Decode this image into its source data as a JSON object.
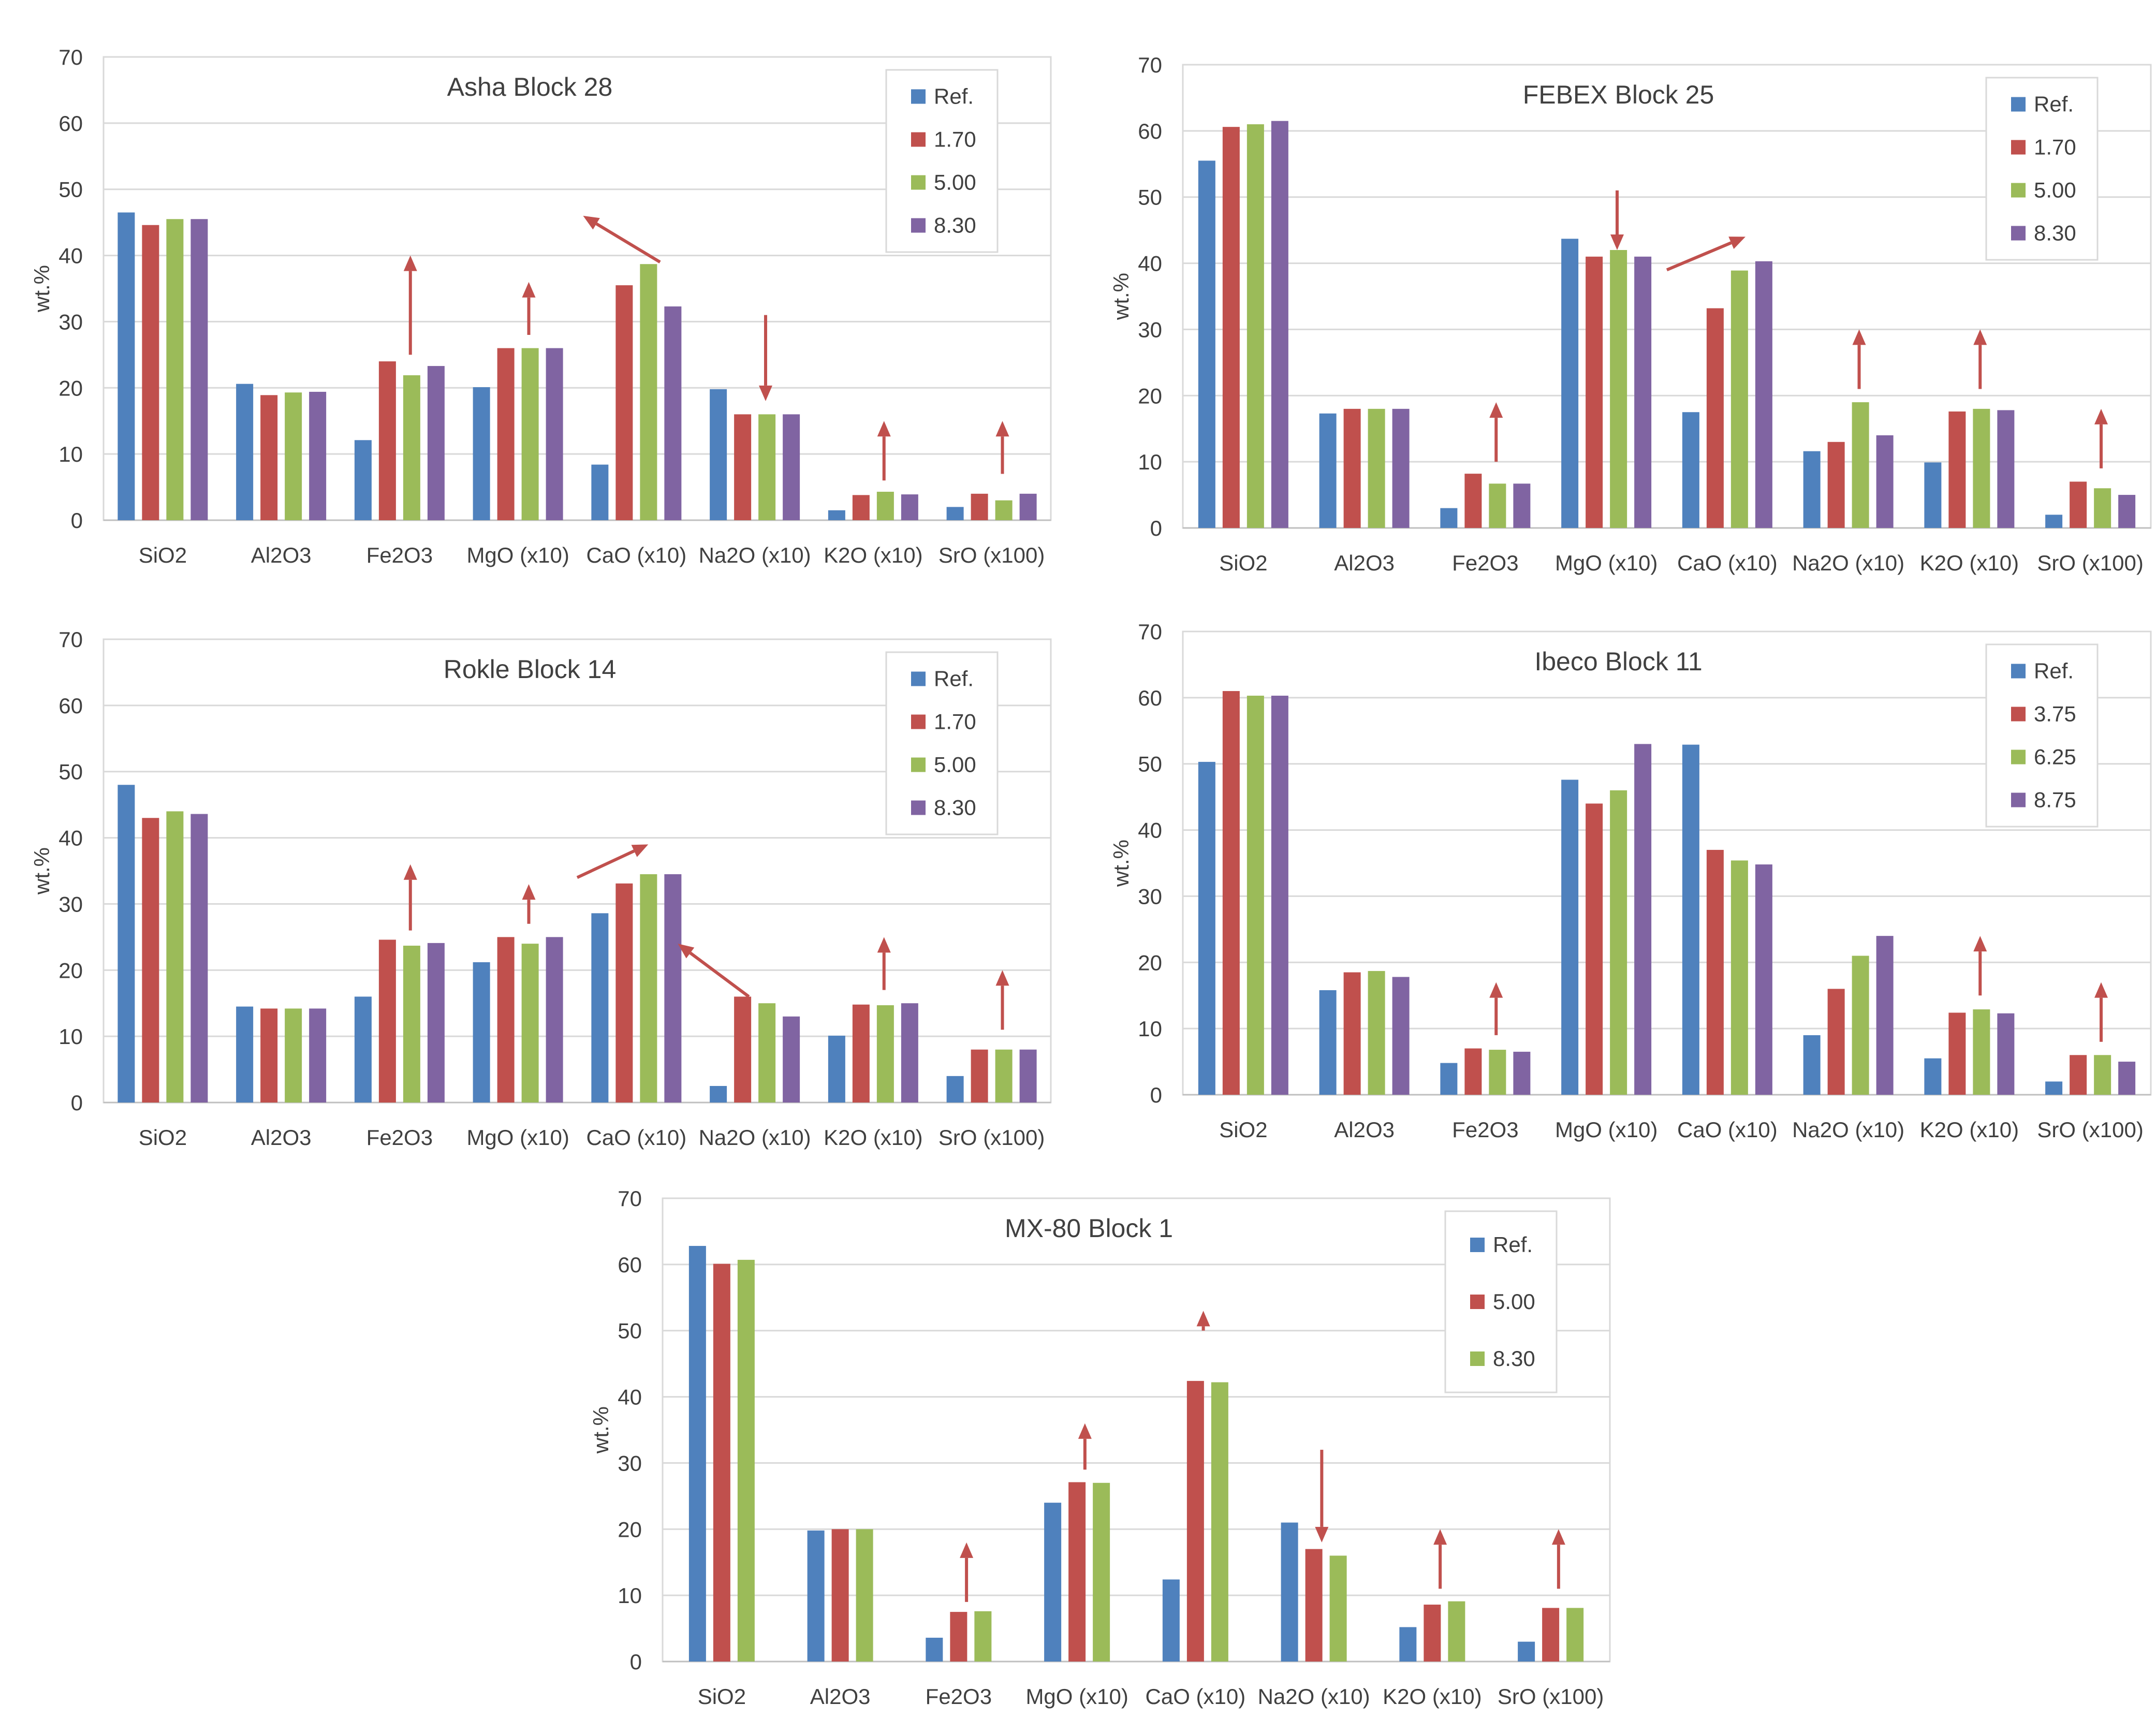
{
  "colors": {
    "ref": "#4f81bd",
    "s2": "#c0504d",
    "s3": "#9bbb59",
    "s4": "#8064a2",
    "arrow": "#c0504d",
    "grid": "#d9d9d9",
    "text": "#404040"
  },
  "chart_data": [
    {
      "type": "bar",
      "title": "Asha Block 28",
      "ylabel": "wt.%",
      "ylim": [
        0,
        70
      ],
      "yticks": [
        "0",
        "10",
        "20",
        "30",
        "40",
        "50",
        "60",
        "70"
      ],
      "grid": true,
      "legend_position": "top-right",
      "categories": [
        "SiO2",
        "Al2O3",
        "Fe2O3",
        "MgO (x10)",
        "CaO (x10)",
        "Na2O (x10)",
        "K2O (x10)",
        "SrO (x100)"
      ],
      "series": [
        {
          "name": "Ref.",
          "values": [
            46.5,
            20.6,
            12.1,
            20.1,
            8.4,
            19.8,
            1.5,
            2.0
          ]
        },
        {
          "name": "1.70",
          "values": [
            44.6,
            18.9,
            24.0,
            26.0,
            35.5,
            16.0,
            3.8,
            4.0
          ]
        },
        {
          "name": "5.00",
          "values": [
            45.5,
            19.3,
            21.9,
            26.0,
            38.7,
            16.0,
            4.3,
            3.0
          ]
        },
        {
          "name": "8.30",
          "values": [
            45.5,
            19.4,
            23.3,
            26.0,
            32.3,
            16.0,
            3.9,
            4.0
          ]
        }
      ],
      "arrows": [
        {
          "cat": 2,
          "y0": 25,
          "y1": 40
        },
        {
          "cat": 3,
          "y0": 28,
          "y1": 36
        },
        {
          "from": 4.7,
          "y0": 39,
          "to": 4.05,
          "y1": 46
        },
        {
          "cat": 5,
          "y0": 31,
          "y1": 18
        },
        {
          "cat": 6,
          "y0": 6,
          "y1": 15
        },
        {
          "cat": 7,
          "y0": 7,
          "y1": 15
        }
      ]
    },
    {
      "type": "bar",
      "title": "FEBEX Block 25",
      "ylabel": "wt.%",
      "ylim": [
        0,
        70
      ],
      "yticks": [
        "0",
        "10",
        "20",
        "30",
        "40",
        "50",
        "60",
        "70"
      ],
      "grid": true,
      "legend_position": "top-right",
      "categories": [
        "SiO2",
        "Al2O3",
        "Fe2O3",
        "MgO (x10)",
        "CaO (x10)",
        "Na2O (x10)",
        "K2O (x10)",
        "SrO (x100)"
      ],
      "series": [
        {
          "name": "Ref.",
          "values": [
            55.5,
            17.3,
            3.0,
            43.7,
            17.5,
            11.6,
            9.9,
            2.0
          ]
        },
        {
          "name": "1.70",
          "values": [
            60.6,
            18.0,
            8.2,
            41.0,
            33.2,
            13.0,
            17.6,
            7.0
          ]
        },
        {
          "name": "5.00",
          "values": [
            61.0,
            18.0,
            6.7,
            42.0,
            38.9,
            19.0,
            18.0,
            6.0
          ]
        },
        {
          "name": "8.30",
          "values": [
            61.5,
            18.0,
            6.7,
            41.0,
            40.3,
            14.0,
            17.8,
            5.0
          ]
        }
      ],
      "arrows": [
        {
          "cat": 3,
          "y0": 51,
          "y1": 42
        },
        {
          "from": 4.0,
          "y0": 39,
          "to": 4.65,
          "y1": 44
        },
        {
          "cat": 2,
          "y0": 10,
          "y1": 19
        },
        {
          "cat": 5,
          "y0": 21,
          "y1": 30
        },
        {
          "cat": 6,
          "y0": 21,
          "y1": 30
        },
        {
          "cat": 7,
          "y0": 9,
          "y1": 18
        }
      ]
    },
    {
      "type": "bar",
      "title": "Rokle Block 14",
      "ylabel": "wt.%",
      "ylim": [
        0,
        70
      ],
      "yticks": [
        "0",
        "10",
        "20",
        "30",
        "40",
        "50",
        "60",
        "70"
      ],
      "grid": true,
      "legend_position": "top-right",
      "categories": [
        "SiO2",
        "Al2O3",
        "Fe2O3",
        "MgO (x10)",
        "CaO (x10)",
        "Na2O (x10)",
        "K2O (x10)",
        "SrO (x100)"
      ],
      "series": [
        {
          "name": "Ref.",
          "values": [
            48.0,
            14.5,
            16.0,
            21.2,
            28.6,
            2.5,
            10.1,
            4.0
          ]
        },
        {
          "name": "1.70",
          "values": [
            43.0,
            14.2,
            24.6,
            25.0,
            33.1,
            16.0,
            14.8,
            8.0
          ]
        },
        {
          "name": "5.00",
          "values": [
            44.0,
            14.2,
            23.7,
            24.0,
            34.5,
            15.0,
            14.7,
            8.0
          ]
        },
        {
          "name": "8.30",
          "values": [
            43.6,
            14.2,
            24.1,
            25.0,
            34.5,
            13.0,
            15.0,
            8.0
          ]
        }
      ],
      "arrows": [
        {
          "cat": 2,
          "y0": 26,
          "y1": 36
        },
        {
          "cat": 3,
          "y0": 27,
          "y1": 33
        },
        {
          "from": 4.0,
          "y0": 34,
          "to": 4.6,
          "y1": 39
        },
        {
          "from": 5.45,
          "y0": 16,
          "to": 4.85,
          "y1": 24
        },
        {
          "cat": 6,
          "y0": 17,
          "y1": 25
        },
        {
          "cat": 7,
          "y0": 11,
          "y1": 20
        }
      ]
    },
    {
      "type": "bar",
      "title": "Ibeco Block 11",
      "ylabel": "wt.%",
      "ylim": [
        0,
        70
      ],
      "yticks": [
        "0",
        "10",
        "20",
        "30",
        "40",
        "50",
        "60",
        "70"
      ],
      "grid": true,
      "legend_position": "top-right",
      "categories": [
        "SiO2",
        "Al2O3",
        "Fe2O3",
        "MgO (x10)",
        "CaO (x10)",
        "Na2O (x10)",
        "K2O (x10)",
        "SrO (x100)"
      ],
      "series": [
        {
          "name": "Ref.",
          "values": [
            50.3,
            15.8,
            4.8,
            47.6,
            52.9,
            9.0,
            5.5,
            2.0
          ]
        },
        {
          "name": "3.75",
          "values": [
            61.0,
            18.5,
            7.0,
            44.0,
            37.0,
            16.0,
            12.4,
            6.0
          ]
        },
        {
          "name": "6.25",
          "values": [
            60.3,
            18.7,
            6.8,
            46.0,
            35.4,
            21.0,
            12.9,
            6.0
          ]
        },
        {
          "name": "8.75",
          "values": [
            60.3,
            17.8,
            6.5,
            53.0,
            34.8,
            24.0,
            12.3,
            5.0
          ]
        }
      ],
      "arrows": [
        {
          "cat": 2,
          "y0": 9,
          "y1": 17
        },
        {
          "cat": 6,
          "y0": 15,
          "y1": 24
        },
        {
          "cat": 7,
          "y0": 8,
          "y1": 17
        }
      ]
    },
    {
      "type": "bar",
      "title": "MX-80 Block 1",
      "ylabel": "wt.%",
      "ylim": [
        0,
        70
      ],
      "yticks": [
        "0",
        "10",
        "20",
        "30",
        "40",
        "50",
        "60",
        "70"
      ],
      "grid": true,
      "legend_position": "top-right",
      "categories": [
        "SiO2",
        "Al2O3",
        "Fe2O3",
        "MgO (x10)",
        "CaO (x10)",
        "Na2O (x10)",
        "K2O (x10)",
        "SrO (x100)"
      ],
      "series": [
        {
          "name": "Ref.",
          "values": [
            62.8,
            19.8,
            3.6,
            24.0,
            12.4,
            21.0,
            5.2,
            3.0
          ]
        },
        {
          "name": "5.00",
          "values": [
            60.1,
            20.0,
            7.5,
            27.1,
            42.4,
            17.0,
            8.6,
            8.1
          ]
        },
        {
          "name": "8.30",
          "values": [
            60.7,
            20.0,
            7.6,
            27.0,
            42.2,
            16.0,
            9.1,
            8.1
          ]
        }
      ],
      "arrows": [
        {
          "cat": 2,
          "y0": 9,
          "y1": 18
        },
        {
          "cat": 3,
          "y0": 29,
          "y1": 36
        },
        {
          "cat": 4,
          "y0": 50,
          "y1": 53
        },
        {
          "cat": 5,
          "y0": 32,
          "y1": 18
        },
        {
          "cat": 6,
          "y0": 11,
          "y1": 20
        },
        {
          "cat": 7,
          "y0": 11,
          "y1": 20
        }
      ]
    }
  ]
}
